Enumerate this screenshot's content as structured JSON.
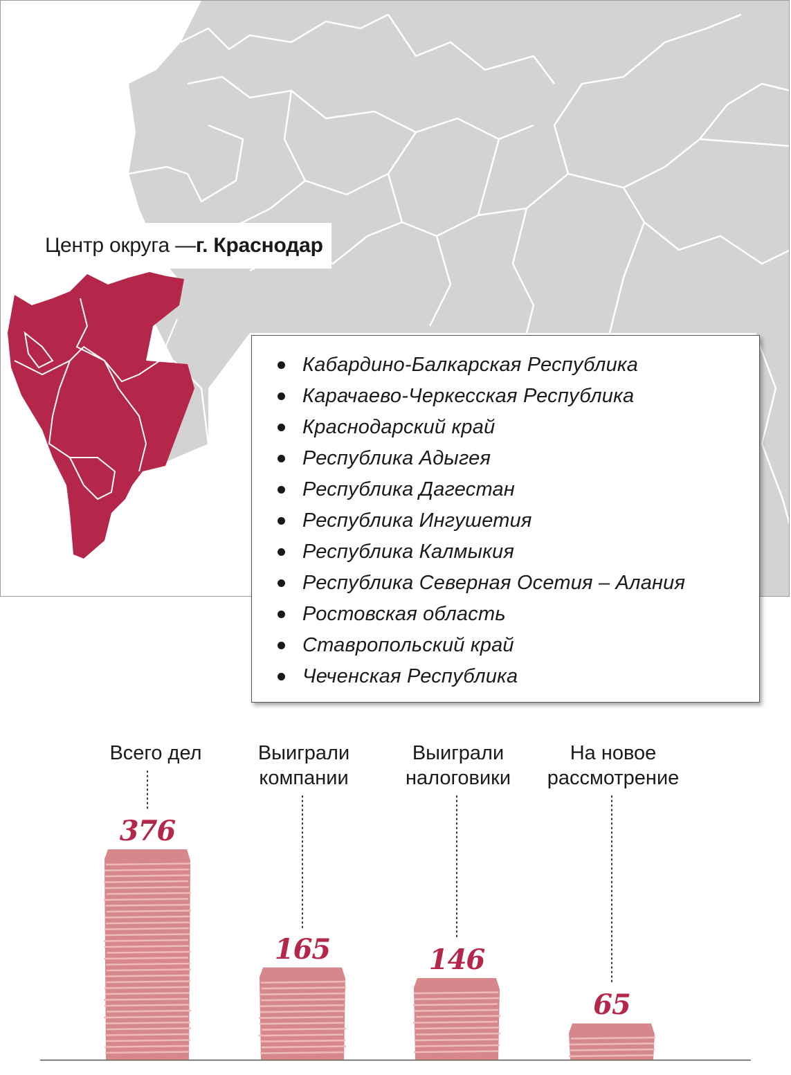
{
  "map": {
    "center_prefix": "Центр округа — ",
    "center_city": "г. Краснодар",
    "highlight_color": "#b5264b",
    "base_color": "#d3d3d3"
  },
  "regions": [
    "Кабардино-Балкарская Республика",
    "Карачаево-Черкесская Республика",
    "Краснодарский край",
    "Республика Адыгея",
    "Республика Дагестан",
    "Республика Ингушетия",
    "Республика Калмыкия",
    "Республика Северная Осетия – Алания",
    "Ростовская область",
    "Ставропольский край",
    "Чеченская Республика"
  ],
  "chart_data": {
    "type": "bar",
    "categories": [
      "Всего дел",
      "Выиграли компании",
      "Выиграли налоговики",
      "На новое рассмотрение"
    ],
    "category_lines": [
      [
        "Всего дел"
      ],
      [
        "Выиграли",
        "компании"
      ],
      [
        "Выиграли",
        "налоговики"
      ],
      [
        "На новое",
        "рассмотрение"
      ]
    ],
    "values": [
      376,
      165,
      146,
      65
    ],
    "value_labels": [
      "376",
      "165",
      "146",
      "65"
    ],
    "bar_color": "#d6878c",
    "stripe_color": "#efb9bb"
  }
}
